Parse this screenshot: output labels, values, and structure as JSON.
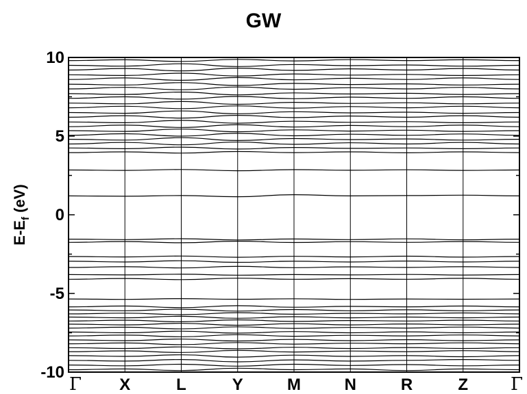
{
  "chart_data": {
    "type": "line",
    "title": "GW",
    "ylabel_main": "E-E",
    "ylabel_sub": "f",
    "ylabel_tail": " (eV)",
    "ylim": [
      -10,
      10
    ],
    "yticks": [
      -10,
      -5,
      0,
      5,
      10
    ],
    "ytick_labels": [
      "-10",
      "-5",
      "0",
      "5",
      "10"
    ],
    "kpath_labels": [
      "Γ",
      "X",
      "L",
      "Y",
      "M",
      "N",
      "R",
      "Z",
      "Γ"
    ],
    "grid": "vertical lines at high-symmetry points",
    "line_color": "#000000",
    "series_note": "bands listed as energies (eV) sampled at the 9 high-symmetry points",
    "bands": [
      [
        -9.85,
        -9.8,
        -9.9,
        -9.75,
        -9.85,
        -9.8,
        -9.9,
        -9.8,
        -9.85
      ],
      [
        -9.55,
        -9.6,
        -9.5,
        -9.62,
        -9.5,
        -9.58,
        -9.52,
        -9.6,
        -9.55
      ],
      [
        -9.25,
        -9.3,
        -9.2,
        -9.35,
        -9.22,
        -9.3,
        -9.25,
        -9.2,
        -9.25
      ],
      [
        -8.95,
        -9.0,
        -8.9,
        -9.05,
        -8.92,
        -9.0,
        -8.95,
        -9.02,
        -8.95
      ],
      [
        -8.7,
        -8.65,
        -8.75,
        -8.62,
        -8.72,
        -8.66,
        -8.7,
        -8.64,
        -8.7
      ],
      [
        -8.45,
        -8.5,
        -8.4,
        -8.52,
        -8.42,
        -8.5,
        -8.44,
        -8.5,
        -8.45
      ],
      [
        -8.2,
        -8.15,
        -8.25,
        -8.12,
        -8.22,
        -8.16,
        -8.2,
        -8.14,
        -8.2
      ],
      [
        -7.95,
        -8.0,
        -7.9,
        -8.02,
        -7.92,
        -8.0,
        -7.94,
        -8.0,
        -7.95
      ],
      [
        -7.7,
        -7.65,
        -7.75,
        -7.62,
        -7.72,
        -7.66,
        -7.7,
        -7.64,
        -7.7
      ],
      [
        -7.45,
        -7.5,
        -7.4,
        -7.52,
        -7.42,
        -7.5,
        -7.44,
        -7.5,
        -7.45
      ],
      [
        -7.2,
        -7.15,
        -7.25,
        -7.12,
        -7.22,
        -7.16,
        -7.2,
        -7.14,
        -7.2
      ],
      [
        -6.95,
        -7.0,
        -6.9,
        -7.02,
        -6.92,
        -7.0,
        -6.94,
        -7.0,
        -6.95
      ],
      [
        -6.75,
        -6.7,
        -6.8,
        -6.68,
        -6.78,
        -6.72,
        -6.75,
        -6.7,
        -6.75
      ],
      [
        -6.5,
        -6.55,
        -6.45,
        -6.58,
        -6.48,
        -6.55,
        -6.5,
        -6.55,
        -6.5
      ],
      [
        -6.3,
        -6.25,
        -6.35,
        -6.22,
        -6.32,
        -6.26,
        -6.3,
        -6.24,
        -6.3
      ],
      [
        -6.05,
        -6.1,
        -6.0,
        -6.12,
        -6.02,
        -6.1,
        -6.04,
        -6.1,
        -6.05
      ],
      [
        -5.85,
        -5.8,
        -5.9,
        -5.78,
        -5.88,
        -5.82,
        -5.85,
        -5.8,
        -5.85
      ],
      [
        -5.35,
        -5.38,
        -5.33,
        -5.37,
        -5.34,
        -5.38,
        -5.35,
        -5.37,
        -5.35
      ],
      [
        -4.1,
        -4.05,
        -4.12,
        -4.03,
        -4.1,
        -4.06,
        -4.1,
        -4.04,
        -4.1
      ],
      [
        -3.8,
        -3.82,
        -3.78,
        -3.84,
        -3.8,
        -3.82,
        -3.79,
        -3.83,
        -3.8
      ],
      [
        -3.35,
        -3.3,
        -3.38,
        -3.28,
        -3.36,
        -3.31,
        -3.35,
        -3.3,
        -3.35
      ],
      [
        -2.95,
        -3.0,
        -2.92,
        -3.02,
        -2.95,
        -3.0,
        -2.94,
        -3.0,
        -2.95
      ],
      [
        -2.65,
        -2.68,
        -2.62,
        -2.7,
        -2.64,
        -2.68,
        -2.63,
        -2.69,
        -2.65
      ],
      [
        -1.75,
        -1.7,
        -1.78,
        -1.68,
        -1.76,
        -1.71,
        -1.75,
        -1.7,
        -1.75
      ],
      [
        -1.55,
        -1.58,
        -1.52,
        -1.6,
        -1.54,
        -1.58,
        -1.53,
        -1.59,
        -1.55
      ],
      [
        1.2,
        1.18,
        1.22,
        1.15,
        1.28,
        1.2,
        1.22,
        1.25,
        1.2
      ],
      [
        2.85,
        2.82,
        2.88,
        2.8,
        2.87,
        2.83,
        2.86,
        2.82,
        2.85
      ],
      [
        3.95,
        4.0,
        3.92,
        4.02,
        3.95,
        4.0,
        3.94,
        4.0,
        3.95
      ],
      [
        4.25,
        4.2,
        4.3,
        4.18,
        4.28,
        4.22,
        4.25,
        4.2,
        4.25
      ],
      [
        4.5,
        4.6,
        4.45,
        4.62,
        4.48,
        4.58,
        4.5,
        4.6,
        4.5
      ],
      [
        4.8,
        4.75,
        4.9,
        4.72,
        4.85,
        4.78,
        4.82,
        4.75,
        4.8
      ],
      [
        5.05,
        5.15,
        5.0,
        5.18,
        5.02,
        5.12,
        5.05,
        5.14,
        5.05
      ],
      [
        5.35,
        5.3,
        5.45,
        5.28,
        5.4,
        5.32,
        5.38,
        5.3,
        5.35
      ],
      [
        5.6,
        5.7,
        5.55,
        5.72,
        5.58,
        5.68,
        5.6,
        5.7,
        5.6
      ],
      [
        5.9,
        5.85,
        6.0,
        5.82,
        5.95,
        5.88,
        5.92,
        5.85,
        5.9
      ],
      [
        6.2,
        6.3,
        6.15,
        6.32,
        6.18,
        6.28,
        6.2,
        6.3,
        6.2
      ],
      [
        6.5,
        6.45,
        6.6,
        6.42,
        6.55,
        6.48,
        6.52,
        6.45,
        6.5
      ],
      [
        6.8,
        6.9,
        6.75,
        6.92,
        6.78,
        6.88,
        6.8,
        6.9,
        6.8
      ],
      [
        7.1,
        7.05,
        7.2,
        7.02,
        7.15,
        7.08,
        7.12,
        7.05,
        7.1
      ],
      [
        7.4,
        7.5,
        7.35,
        7.52,
        7.38,
        7.48,
        7.4,
        7.5,
        7.4
      ],
      [
        7.7,
        7.65,
        7.8,
        7.62,
        7.75,
        7.68,
        7.72,
        7.65,
        7.7
      ],
      [
        8.0,
        8.1,
        7.95,
        8.12,
        7.98,
        8.08,
        8.0,
        8.1,
        8.0
      ],
      [
        8.3,
        8.25,
        8.4,
        8.22,
        8.35,
        8.28,
        8.32,
        8.25,
        8.3
      ],
      [
        8.6,
        8.7,
        8.55,
        8.72,
        8.58,
        8.68,
        8.6,
        8.7,
        8.6
      ],
      [
        8.9,
        8.85,
        9.0,
        8.82,
        8.95,
        8.88,
        8.92,
        8.85,
        8.9
      ],
      [
        9.2,
        9.3,
        9.15,
        9.32,
        9.18,
        9.28,
        9.2,
        9.3,
        9.2
      ],
      [
        9.5,
        9.45,
        9.6,
        9.42,
        9.55,
        9.48,
        9.52,
        9.45,
        9.5
      ],
      [
        9.8,
        9.85,
        9.75,
        9.88,
        9.78,
        9.86,
        9.8,
        9.85,
        9.8
      ]
    ]
  }
}
